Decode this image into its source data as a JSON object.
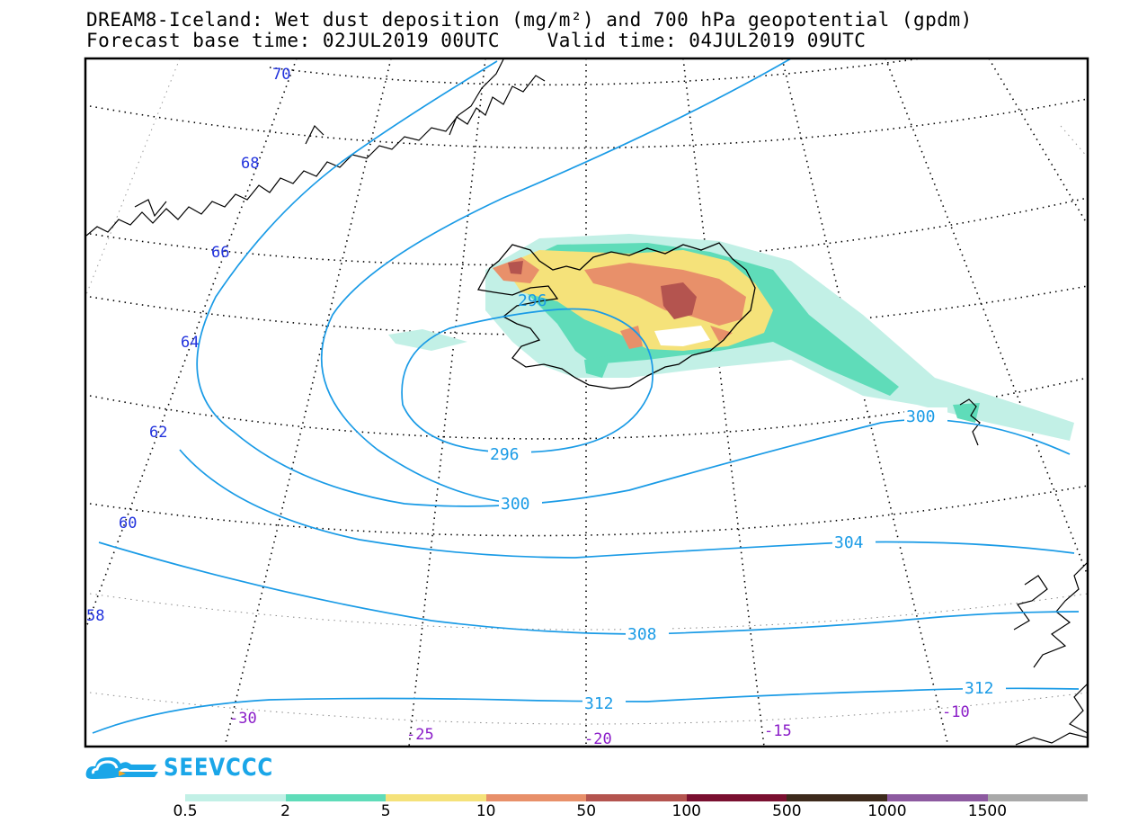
{
  "title": {
    "line1": "DREAM8-Iceland: Wet dust deposition (mg/m²) and 700 hPa geopotential (gpdm)",
    "line2": "Forecast base time: 02JUL2019 00UTC    Valid time: 04JUL2019 09UTC"
  },
  "map": {
    "lat_labels": [
      "70",
      "68",
      "66",
      "64",
      "62",
      "60",
      "58"
    ],
    "lon_labels": [
      "-30",
      "-25",
      "-20",
      "-15",
      "-10"
    ],
    "contour_labels": [
      "296",
      "296",
      "300",
      "300",
      "304",
      "308",
      "312",
      "312"
    ],
    "colors": {
      "lat_label": "#2233dd",
      "lon_label": "#8a1cc8",
      "contour": "#1a9be6",
      "coast": "#000000"
    }
  },
  "logo": {
    "text": "SEEVCCC",
    "color": "#1aa6e8"
  },
  "colorbar": {
    "labels": [
      "0.5",
      "2",
      "5",
      "10",
      "50",
      "100",
      "500",
      "1000",
      "1500"
    ],
    "colors": [
      "#c2f0e6",
      "#5fdcb9",
      "#f5e27a",
      "#e8906a",
      "#b4544f",
      "#7a1030",
      "#3d2a1c",
      "#8d5aa0",
      "#a9a9a9"
    ]
  }
}
